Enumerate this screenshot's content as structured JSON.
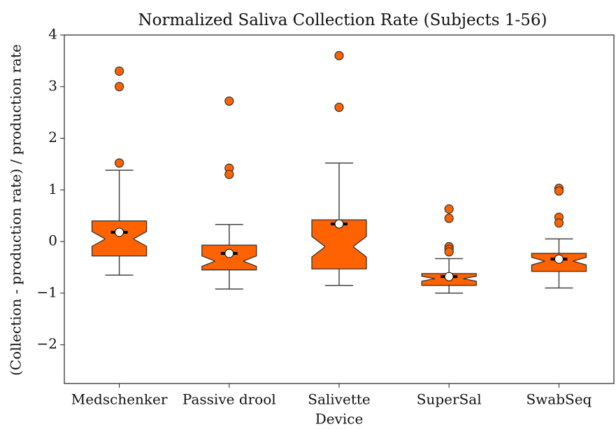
{
  "chart_data": {
    "type": "box",
    "title": "Normalized Saliva Collection Rate (Subjects 1-56)",
    "x_label": "Device",
    "y_label": "(Collection - production rate) / production rate",
    "categories": [
      "Medschenker",
      "Passive drool",
      "Salivette",
      "SuperSal",
      "SwabSeq"
    ],
    "color": "#ff6200",
    "boxes": [
      {
        "whislo": -0.65,
        "q1": -0.28,
        "med": 0.05,
        "q3": 0.4,
        "whishi": 1.38,
        "mean": 0.18,
        "fliers": [
          3.3,
          3.0,
          1.52
        ]
      },
      {
        "whislo": -0.92,
        "q1": -0.55,
        "med": -0.38,
        "q3": -0.07,
        "whishi": 0.33,
        "mean": -0.23,
        "fliers": [
          2.72,
          1.42,
          1.3
        ]
      },
      {
        "whislo": -0.85,
        "q1": -0.53,
        "med": -0.1,
        "q3": 0.42,
        "whishi": 1.52,
        "mean": 0.34,
        "fliers": [
          3.6,
          2.6
        ]
      },
      {
        "whislo": -1.0,
        "q1": -0.85,
        "med": -0.72,
        "q3": -0.62,
        "whishi": -0.33,
        "mean": -0.68,
        "fliers": [
          0.63,
          0.45,
          -0.1,
          -0.15,
          -0.2
        ]
      },
      {
        "whislo": -0.9,
        "q1": -0.58,
        "med": -0.38,
        "q3": -0.23,
        "whishi": 0.05,
        "mean": -0.34,
        "fliers": [
          1.03,
          0.98,
          0.47,
          0.36
        ]
      }
    ],
    "ylim": [
      -2.75,
      4
    ],
    "yticks": [
      {
        "value": -2,
        "label": "−2"
      },
      {
        "value": -1,
        "label": "−1"
      },
      0,
      1,
      2,
      3,
      4
    ]
  }
}
